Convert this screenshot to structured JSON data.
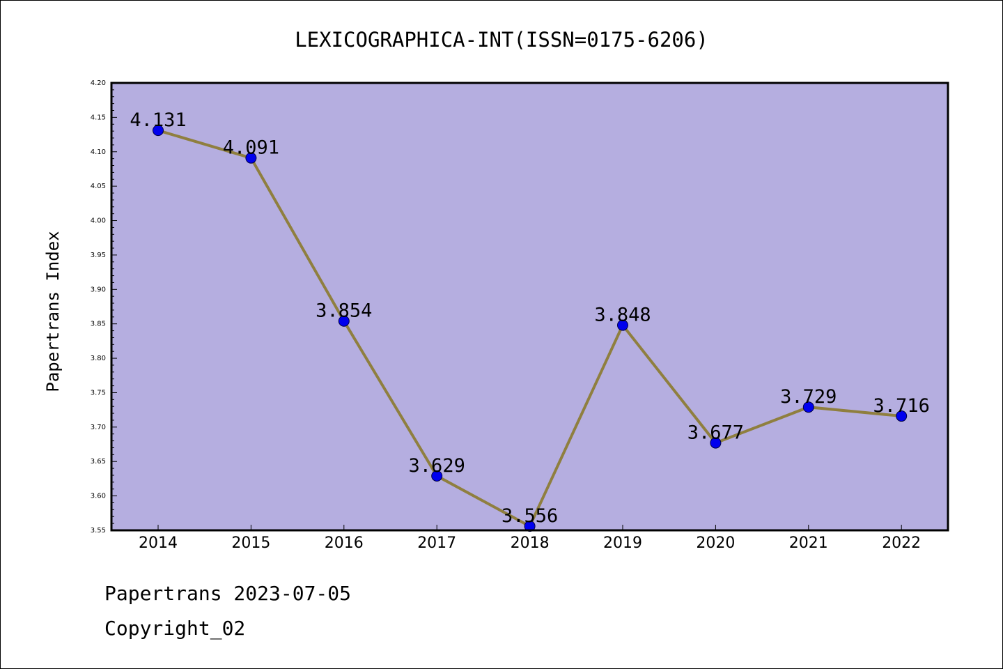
{
  "chart_data": {
    "type": "line",
    "title": "LEXICOGRAPHICA-INT(ISSN=0175-6206)",
    "xlabel": "",
    "ylabel": "Papertrans Index",
    "categories": [
      "2014",
      "2015",
      "2016",
      "2017",
      "2018",
      "2019",
      "2020",
      "2021",
      "2022"
    ],
    "values": [
      4.131,
      4.091,
      3.854,
      3.629,
      3.556,
      3.848,
      3.677,
      3.729,
      3.716
    ],
    "value_labels": [
      "4.131",
      "4.091",
      "3.854",
      "3.629",
      "3.556",
      "3.848",
      "3.677",
      "3.729",
      "3.716"
    ],
    "ylim": [
      3.55,
      4.2
    ],
    "yticks": [
      3.55,
      3.6,
      3.65,
      3.7,
      3.75,
      3.8,
      3.85,
      3.9,
      3.95,
      4.0,
      4.05,
      4.1,
      4.15,
      4.2
    ],
    "ytick_labels": [
      "3.55",
      "3.60",
      "3.65",
      "3.70",
      "3.75",
      "3.80",
      "3.85",
      "3.90",
      "3.95",
      "4.00",
      "4.05",
      "4.10",
      "4.15",
      "4.20"
    ],
    "grid": false,
    "colors": {
      "plot_background": "#b5aee0",
      "line": "#8f7f3f",
      "marker": "#0000ee"
    }
  },
  "footer": {
    "line1": "Papertrans 2023-07-05",
    "line2": "Copyright_02"
  }
}
